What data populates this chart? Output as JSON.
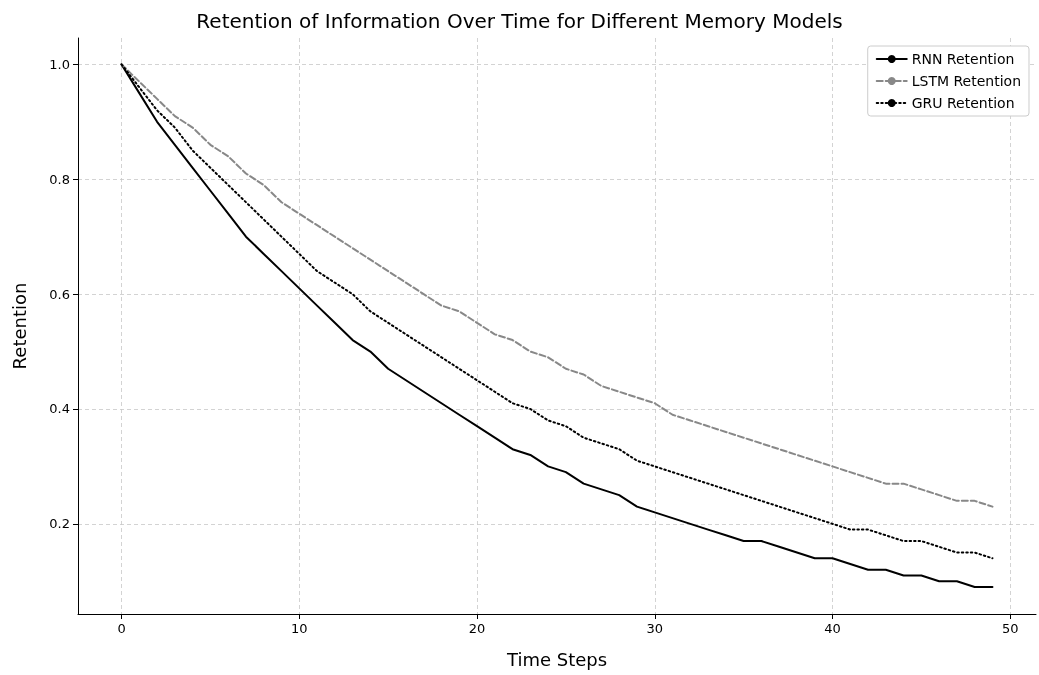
{
  "chart_data": {
    "type": "line",
    "title": "Retention of Information Over Time for Different Memory Models",
    "xlabel": "Time Steps",
    "ylabel": "Retention",
    "x": [
      0,
      1,
      2,
      3,
      4,
      5,
      6,
      7,
      8,
      9,
      10,
      11,
      12,
      13,
      14,
      15,
      16,
      17,
      18,
      19,
      20,
      21,
      22,
      23,
      24,
      25,
      26,
      27,
      28,
      29,
      30,
      31,
      32,
      33,
      34,
      35,
      36,
      37,
      38,
      39,
      40,
      41,
      42,
      43,
      44,
      45,
      46,
      47,
      48,
      49
    ],
    "series": [
      {
        "name": "RNN Retention",
        "color": "#000000",
        "line_style": "solid",
        "values": [
          1.0,
          0.95,
          0.9,
          0.86,
          0.82,
          0.78,
          0.74,
          0.7,
          0.67,
          0.64,
          0.61,
          0.58,
          0.55,
          0.52,
          0.5,
          0.47,
          0.45,
          0.43,
          0.41,
          0.39,
          0.37,
          0.35,
          0.33,
          0.32,
          0.3,
          0.29,
          0.27,
          0.26,
          0.25,
          0.23,
          0.22,
          0.21,
          0.2,
          0.19,
          0.18,
          0.17,
          0.17,
          0.16,
          0.15,
          0.14,
          0.14,
          0.13,
          0.12,
          0.12,
          0.11,
          0.11,
          0.1,
          0.1,
          0.09,
          0.09
        ]
      },
      {
        "name": "LSTM Retention",
        "color": "#888888",
        "line_style": "dashed",
        "values": [
          1.0,
          0.97,
          0.94,
          0.91,
          0.89,
          0.86,
          0.84,
          0.81,
          0.79,
          0.76,
          0.74,
          0.72,
          0.7,
          0.68,
          0.66,
          0.64,
          0.62,
          0.6,
          0.58,
          0.57,
          0.55,
          0.53,
          0.52,
          0.5,
          0.49,
          0.47,
          0.46,
          0.44,
          0.43,
          0.42,
          0.41,
          0.39,
          0.38,
          0.37,
          0.36,
          0.35,
          0.34,
          0.33,
          0.32,
          0.31,
          0.3,
          0.29,
          0.28,
          0.27,
          0.27,
          0.26,
          0.25,
          0.24,
          0.24,
          0.23
        ]
      },
      {
        "name": "GRU Retention",
        "color": "#000000",
        "line_style": "dotted",
        "values": [
          1.0,
          0.96,
          0.92,
          0.89,
          0.85,
          0.82,
          0.79,
          0.76,
          0.73,
          0.7,
          0.67,
          0.64,
          0.62,
          0.6,
          0.57,
          0.55,
          0.53,
          0.51,
          0.49,
          0.47,
          0.45,
          0.43,
          0.41,
          0.4,
          0.38,
          0.37,
          0.35,
          0.34,
          0.33,
          0.31,
          0.3,
          0.29,
          0.28,
          0.27,
          0.26,
          0.25,
          0.24,
          0.23,
          0.22,
          0.21,
          0.2,
          0.19,
          0.19,
          0.18,
          0.17,
          0.17,
          0.16,
          0.15,
          0.15,
          0.14
        ]
      }
    ],
    "xlim": [
      -2.45,
      51.45
    ],
    "xticks": [
      0,
      10,
      20,
      30,
      40,
      50
    ],
    "ylim": [
      0.043,
      1.046
    ],
    "yticks": [
      0.2,
      0.4,
      0.6,
      0.8,
      {
        "value": 1,
        "label": "1.0"
      }
    ],
    "grid": true,
    "legend": "top right",
    "marker": "none"
  }
}
